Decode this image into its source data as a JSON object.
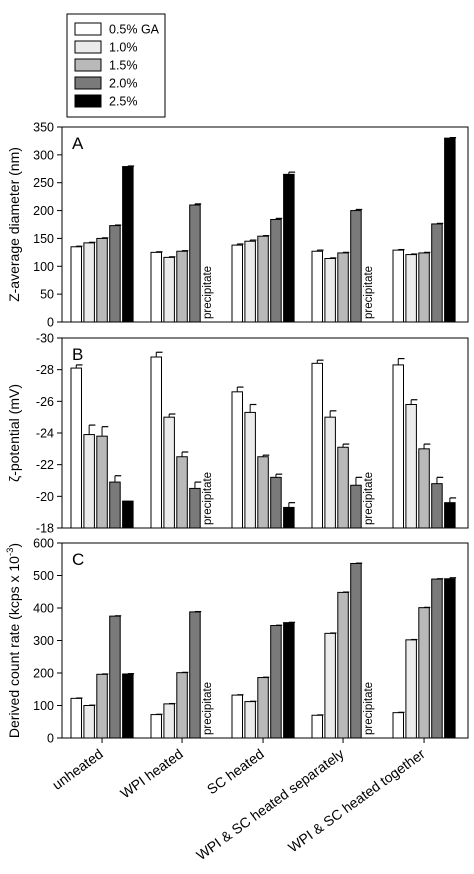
{
  "legend": [
    {
      "label": "0.5% GA",
      "color": "#ffffff"
    },
    {
      "label": "1.0%",
      "color": "#ebebeb"
    },
    {
      "label": "1.5%",
      "color": "#b9b9b9"
    },
    {
      "label": "2.0%",
      "color": "#7a7a7a"
    },
    {
      "label": "2.5%",
      "color": "#000000"
    }
  ],
  "precipitate_label": "precipitate",
  "chart_data": [
    {
      "type": "bar",
      "panel_letter": "A",
      "ylabel": "Z-average diameter (nm)",
      "ylim": [
        0,
        350
      ],
      "yticks": [
        "0",
        "50",
        "100",
        "150",
        "200",
        "250",
        "300",
        "350"
      ],
      "categories": [
        "unheated",
        "WPI heated",
        "SC heated",
        "WPI & SC heated separately",
        "WPI & SC heated together"
      ],
      "series": [
        {
          "name": "0.5% GA",
          "values": [
            135,
            125,
            138,
            127,
            129
          ],
          "errors": [
            1,
            1,
            2,
            2,
            1
          ]
        },
        {
          "name": "1.0%",
          "values": [
            142,
            116,
            145,
            114,
            121
          ],
          "errors": [
            1,
            1,
            2,
            1,
            1
          ]
        },
        {
          "name": "1.5%",
          "values": [
            150,
            127,
            154,
            124,
            124
          ],
          "errors": [
            1,
            1,
            1,
            1,
            1
          ]
        },
        {
          "name": "2.0%",
          "values": [
            173,
            210,
            184,
            200,
            176
          ],
          "errors": [
            1,
            2,
            2,
            2,
            1
          ]
        },
        {
          "name": "2.5%",
          "values": [
            279,
            null,
            265,
            null,
            330
          ],
          "errors": [
            1,
            null,
            4,
            null,
            1
          ]
        }
      ],
      "precipitate": [
        [
          1,
          4
        ],
        [
          3,
          4
        ]
      ],
      "error_direction": "up"
    },
    {
      "type": "bar",
      "panel_letter": "B",
      "ylabel": "ζ-potential (mV)",
      "ylim": [
        -18,
        -30
      ],
      "yticks": [
        "-18",
        "-20",
        "-22",
        "-24",
        "-26",
        "-28",
        "-30"
      ],
      "categories": [
        "unheated",
        "WPI heated",
        "SC heated",
        "WPI & SC heated separately",
        "WPI & SC heated together"
      ],
      "series": [
        {
          "name": "0.5% GA",
          "values": [
            -28.1,
            -28.8,
            -26.6,
            -28.4,
            -28.3
          ],
          "errors": [
            0.2,
            0.3,
            0.3,
            0.2,
            0.4
          ]
        },
        {
          "name": "1.0%",
          "values": [
            -23.9,
            -25.0,
            -25.3,
            -25.0,
            -25.8
          ],
          "errors": [
            0.6,
            0.2,
            0.5,
            0.4,
            0.3
          ]
        },
        {
          "name": "1.5%",
          "values": [
            -23.8,
            -22.5,
            -22.5,
            -23.1,
            -23.0
          ],
          "errors": [
            0.6,
            0.3,
            0.1,
            0.2,
            0.3
          ]
        },
        {
          "name": "2.0%",
          "values": [
            -20.9,
            -20.5,
            -21.2,
            -20.7,
            -20.8
          ],
          "errors": [
            0.4,
            0.4,
            0.2,
            0.5,
            0.4
          ]
        },
        {
          "name": "2.5%",
          "values": [
            -19.7,
            null,
            -19.3,
            null,
            -19.6
          ],
          "errors": [
            0,
            null,
            0.3,
            null,
            0.3
          ]
        }
      ],
      "precipitate": [
        [
          1,
          4
        ],
        [
          3,
          4
        ]
      ],
      "error_direction": "up"
    },
    {
      "type": "bar",
      "panel_letter": "C",
      "ylabel": "Derived count rate (kcps x 10",
      "ylabel_sup": "-3",
      "ylabel_close": ")",
      "ylim": [
        0,
        600
      ],
      "yticks": [
        "0",
        "100",
        "200",
        "300",
        "400",
        "500",
        "600"
      ],
      "categories": [
        "unheated",
        "WPI heated",
        "SC heated",
        "WPI & SC heated separately",
        "WPI & SC heated together"
      ],
      "series": [
        {
          "name": "0.5% GA",
          "values": [
            122,
            72,
            132,
            70,
            78
          ],
          "errors": [
            1,
            1,
            1,
            1,
            1
          ]
        },
        {
          "name": "1.0%",
          "values": [
            100,
            105,
            112,
            322,
            302
          ],
          "errors": [
            1,
            1,
            1,
            1,
            1
          ]
        },
        {
          "name": "1.5%",
          "values": [
            196,
            201,
            186,
            448,
            401
          ],
          "errors": [
            1,
            1,
            1,
            1,
            1
          ]
        },
        {
          "name": "2.0%",
          "values": [
            375,
            388,
            346,
            537,
            489
          ],
          "errors": [
            1,
            1,
            1,
            1,
            1
          ]
        },
        {
          "name": "2.5%",
          "values": [
            197,
            null,
            355,
            null,
            490
          ],
          "errors": [
            1,
            null,
            1,
            null,
            3
          ]
        }
      ],
      "precipitate": [
        [
          1,
          4
        ],
        [
          3,
          4
        ]
      ],
      "error_direction": "up"
    }
  ]
}
